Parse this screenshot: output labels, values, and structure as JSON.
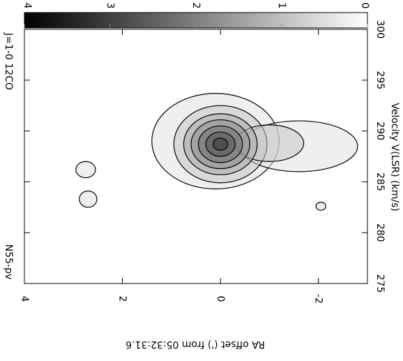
{
  "chart_data": {
    "type": "contour",
    "title": "N55-pv",
    "subtitle": "J=1-0 12CO",
    "x_label": "RA offset (') from 05:32:31.6",
    "y_label": "Velocity V(LSR) (km/s)",
    "xlim": [
      4,
      -3
    ],
    "ylim": [
      275,
      300
    ],
    "xticks": [
      4,
      2,
      0,
      -2
    ],
    "yticks": [
      275,
      280,
      285,
      290,
      295,
      300
    ],
    "colorbar": {
      "lim": [
        4,
        0
      ],
      "ticks": [
        4,
        3,
        2,
        1,
        0
      ]
    },
    "contours": [
      {
        "level": 0.5,
        "x": 0.1,
        "y": 289,
        "rx": 1.3,
        "ry": 4.7
      },
      {
        "level": 0.5,
        "x": -1.6,
        "y": 288.5,
        "rx": 1.2,
        "ry": 2.5
      },
      {
        "level": 0.5,
        "x": 2.75,
        "y": 286.2,
        "rx": 0.2,
        "ry": 0.8
      },
      {
        "level": 0.5,
        "x": 2.7,
        "y": 283.3,
        "rx": 0.18,
        "ry": 0.8
      },
      {
        "level": 0.5,
        "x": -2.05,
        "y": 282.6,
        "rx": 0.1,
        "ry": 0.4
      },
      {
        "level": 1,
        "x": 0,
        "y": 288.7,
        "rx": 0.95,
        "ry": 3.8
      },
      {
        "level": 1,
        "x": -1,
        "y": 288.8,
        "rx": 0.7,
        "ry": 1.8
      },
      {
        "level": 1.5,
        "x": 0,
        "y": 288.7,
        "rx": 0.75,
        "ry": 3
      },
      {
        "level": 2,
        "x": 0,
        "y": 288.7,
        "rx": 0.6,
        "ry": 2.4
      },
      {
        "level": 2.5,
        "x": 0,
        "y": 288.7,
        "rx": 0.45,
        "ry": 1.8
      },
      {
        "level": 3,
        "x": 0,
        "y": 288.7,
        "rx": 0.3,
        "ry": 1.2
      },
      {
        "level": 3.5,
        "x": 0,
        "y": 288.7,
        "rx": 0.15,
        "ry": 0.6
      }
    ]
  }
}
